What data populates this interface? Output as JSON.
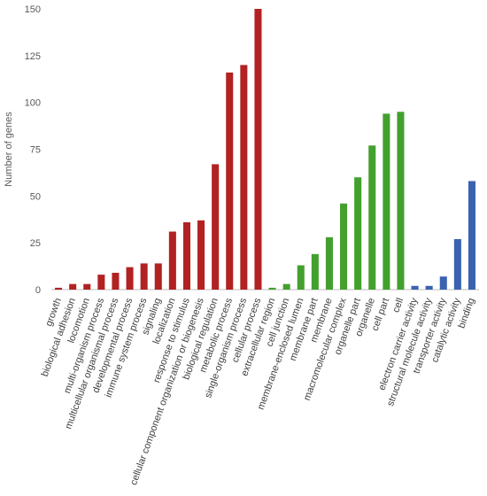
{
  "chart_data": {
    "type": "bar",
    "ylabel": "Number of genes",
    "xlabel": "",
    "ylim": [
      0,
      150
    ],
    "yticks": [
      0,
      25,
      50,
      75,
      100,
      125,
      150
    ],
    "grid": false,
    "colors": {
      "biological_process": "#b22222",
      "cellular_component": "#43a02e",
      "molecular_function": "#3a62b0"
    },
    "categories": [
      "growth",
      "biological adhesion",
      "locomotion",
      "multi-organism process",
      "multicellular organismal process",
      "developmental process",
      "immune system process",
      "signaling",
      "localization",
      "response to stimulus",
      "cellular component organization or biogenesis",
      "biological regulation",
      "metabolic process",
      "single-organism process",
      "cellular process",
      "extracellular region",
      "cell junction",
      "membrane-enclosed lumen",
      "membrane part",
      "membrane",
      "macromolecular complex",
      "organelle part",
      "organelle",
      "cell part",
      "cell",
      "electron carrier activity",
      "structural molecule activity",
      "transporter activity",
      "catalytic activity",
      "binding"
    ],
    "values": [
      1,
      3,
      3,
      8,
      9,
      12,
      14,
      14,
      31,
      36,
      37,
      67,
      116,
      120,
      150,
      1,
      3,
      13,
      19,
      28,
      46,
      60,
      77,
      94,
      95,
      2,
      2,
      7,
      27,
      58
    ],
    "groups": [
      "biological_process",
      "biological_process",
      "biological_process",
      "biological_process",
      "biological_process",
      "biological_process",
      "biological_process",
      "biological_process",
      "biological_process",
      "biological_process",
      "biological_process",
      "biological_process",
      "biological_process",
      "biological_process",
      "biological_process",
      "cellular_component",
      "cellular_component",
      "cellular_component",
      "cellular_component",
      "cellular_component",
      "cellular_component",
      "cellular_component",
      "cellular_component",
      "cellular_component",
      "cellular_component",
      "molecular_function",
      "molecular_function",
      "molecular_function",
      "molecular_function",
      "molecular_function"
    ]
  }
}
